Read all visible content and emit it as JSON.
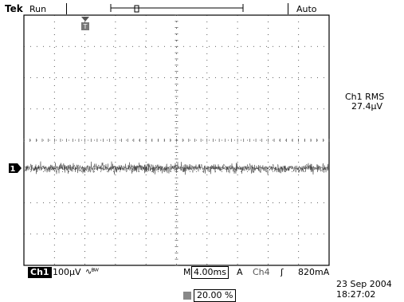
{
  "header": {
    "brand": "Tek",
    "acq_state": "Run",
    "trigger_mode": "Auto"
  },
  "measurement": {
    "label": "Ch1 RMS",
    "value": "27.4µV"
  },
  "channel": {
    "name": "Ch1",
    "scale": "100µV",
    "bw_limit_symbol": "∿ᴮᵂ",
    "ground_marker": "1"
  },
  "timebase": {
    "prefix": "M",
    "value": "4.00ms"
  },
  "trigger": {
    "type": "A",
    "source": "Ch4",
    "edge": "ʃ",
    "level": "820mA",
    "position": "20.00 %",
    "marker": "T"
  },
  "timestamp": {
    "date": "23 Sep  2004",
    "time": "18:27:02"
  },
  "colors": {
    "grid": "#333333",
    "trace": "#555555",
    "background": "#ffffff"
  }
}
